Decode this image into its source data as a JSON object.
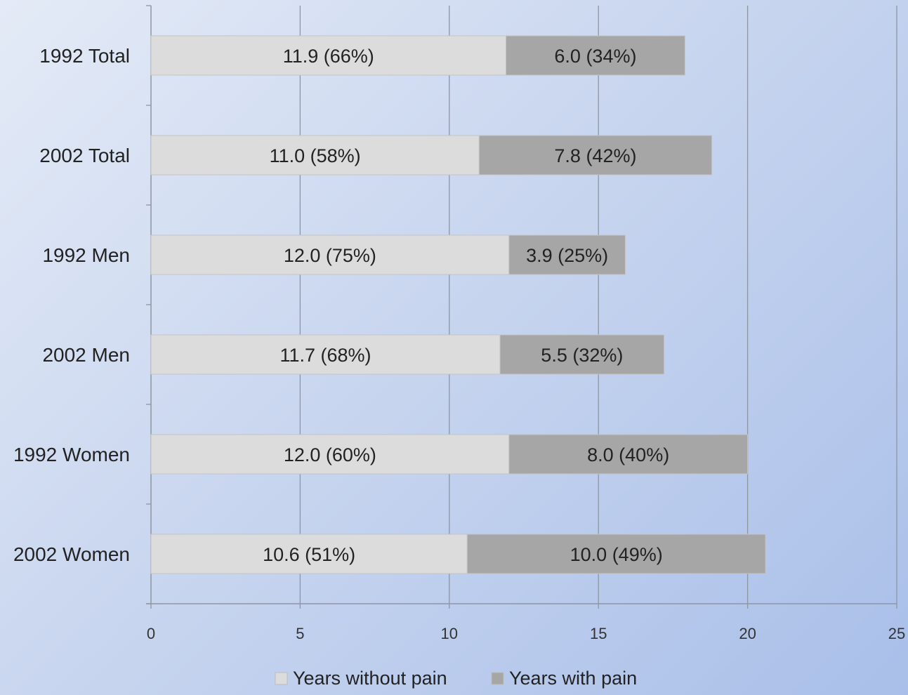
{
  "chart_data": {
    "type": "bar",
    "orientation": "horizontal",
    "stacked": true,
    "categories": [
      "1992 Total",
      "2002 Total",
      "1992 Men",
      "2002 Men",
      "1992 Women",
      "2002 Women"
    ],
    "series": [
      {
        "name": "Years without pain",
        "color": "#dcdcdc",
        "values": [
          11.9,
          11.0,
          12.0,
          11.7,
          12.0,
          10.6
        ],
        "labels": [
          "11.9 (66%)",
          "11.0 (58%)",
          "12.0 (75%)",
          "11.7 (68%)",
          "12.0 (60%)",
          "10.6 (51%)"
        ]
      },
      {
        "name": "Years with pain",
        "color": "#a6a6a6",
        "values": [
          6.0,
          7.8,
          3.9,
          5.5,
          8.0,
          10.0
        ],
        "labels": [
          "6.0 (34%)",
          "7.8 (42%)",
          "3.9 (25%)",
          "5.5 (32%)",
          "8.0 (40%)",
          "10.0 (49%)"
        ]
      }
    ],
    "xlim": [
      0,
      25
    ],
    "xticks": [
      0,
      5,
      10,
      15,
      20,
      25
    ],
    "grid": true,
    "legend_position": "bottom",
    "title": "",
    "xlabel": "",
    "ylabel": ""
  }
}
